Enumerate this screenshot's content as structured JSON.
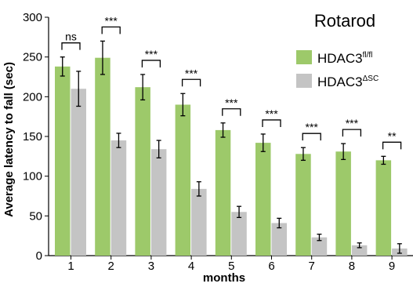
{
  "chart_data": {
    "type": "bar",
    "title": "Rotarod",
    "xlabel": "months",
    "ylabel": "Average latency to fall (sec)",
    "ylim": [
      0,
      300
    ],
    "yticks": [
      0,
      50,
      100,
      150,
      200,
      250,
      300
    ],
    "categories": [
      "1",
      "2",
      "3",
      "4",
      "5",
      "6",
      "7",
      "8",
      "9"
    ],
    "series": [
      {
        "name": "HDAC3",
        "name_sup": "fl/fl",
        "color": "#9dc96a",
        "values": [
          238,
          249,
          212,
          190,
          158,
          142,
          128,
          131,
          120
        ],
        "errors": [
          12,
          21,
          16,
          14,
          9,
          11,
          8,
          10,
          5
        ]
      },
      {
        "name": "HDAC3",
        "name_sup": "ΔSC",
        "color": "#c4c4c4",
        "values": [
          210,
          145,
          134,
          84,
          55,
          41,
          23,
          13,
          9
        ],
        "errors": [
          22,
          9,
          11,
          9,
          7,
          6,
          4,
          3,
          6
        ]
      }
    ],
    "significance": [
      "ns",
      "***",
      "***",
      "***",
      "***",
      "***",
      "***",
      "***",
      "**"
    ],
    "legend_position": "top-right",
    "grid": false
  }
}
